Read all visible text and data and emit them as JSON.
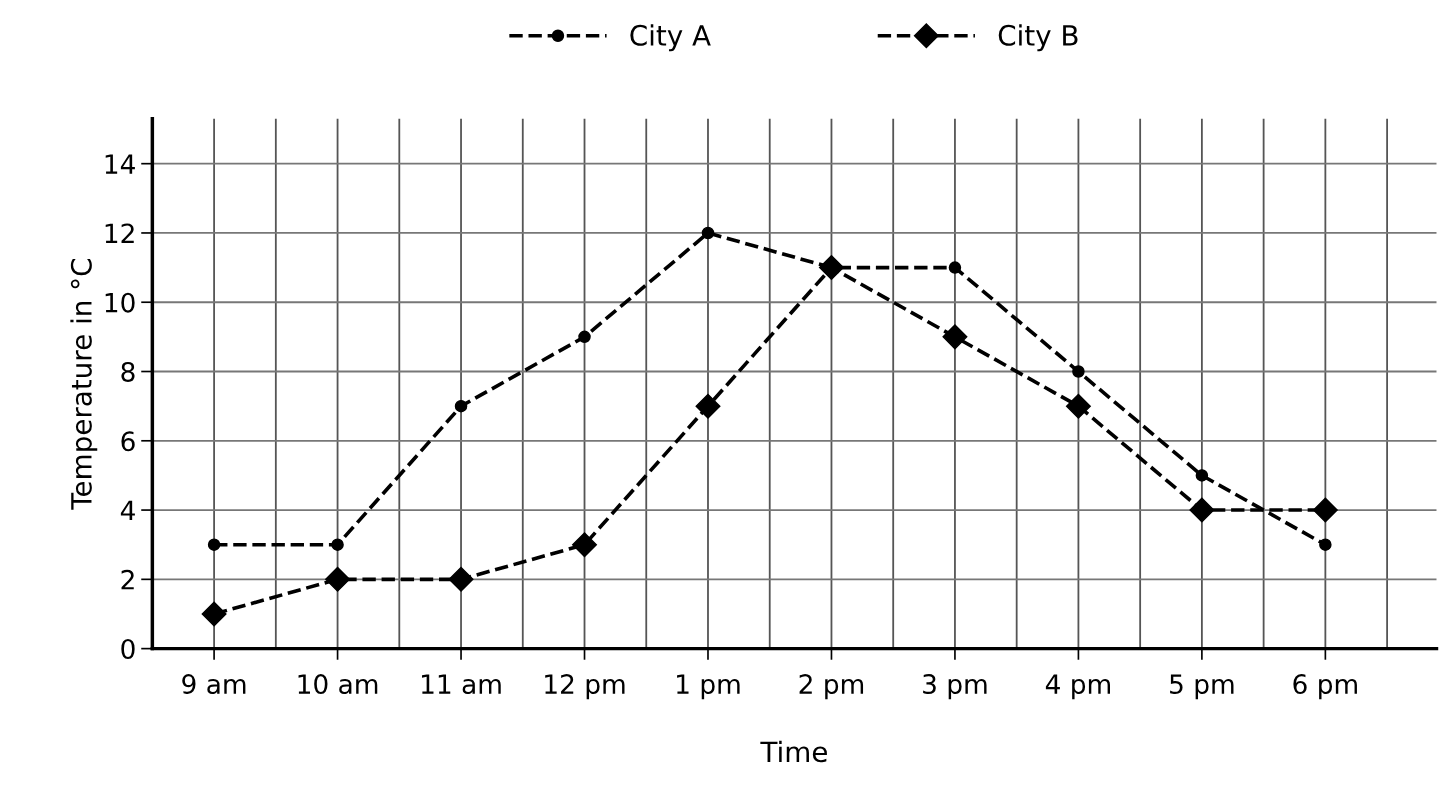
{
  "chart_data": {
    "type": "line",
    "xlabel": "Time",
    "ylabel": "Temperature in °C",
    "categories": [
      "9 am",
      "10 am",
      "11 am",
      "12 pm",
      "1 pm",
      "2 pm",
      "3 pm",
      "4 pm",
      "5 pm",
      "6 pm"
    ],
    "series": [
      {
        "name": "City A",
        "color": "#000000",
        "marker": "circle",
        "values": [
          3,
          3,
          7,
          9,
          12,
          11,
          11,
          8,
          5,
          3
        ]
      },
      {
        "name": "City B",
        "color": "#000000",
        "marker": "diamond",
        "values": [
          1,
          2,
          2,
          3,
          7,
          11,
          9,
          7,
          4,
          4
        ]
      }
    ],
    "ylim": [
      0,
      15.3
    ],
    "yticks": [
      0,
      2,
      4,
      6,
      8,
      10,
      12,
      14
    ],
    "grid": true,
    "legend": "top",
    "line_style": "dashed"
  }
}
